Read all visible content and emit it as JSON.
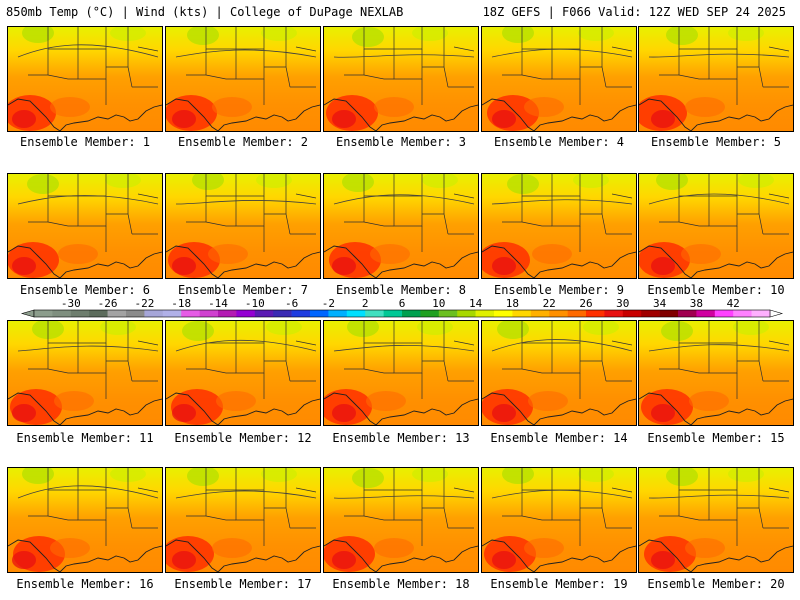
{
  "header": {
    "left": "850mb Temp (°C) | Wind (kts) | College of DuPage NEXLAB",
    "right": "18Z GEFS | F066 Valid: 12Z WED SEP 24 2025"
  },
  "member_label": "Ensemble Member:",
  "members": [
    1,
    2,
    3,
    4,
    5,
    6,
    7,
    8,
    9,
    10,
    11,
    12,
    13,
    14,
    15,
    16,
    17,
    18,
    19,
    20
  ],
  "colorbar": {
    "labels": [
      "-30",
      "-26",
      "-22",
      "-18",
      "-14",
      "-10",
      "-6",
      "-2",
      "2",
      "6",
      "10",
      "14",
      "18",
      "22",
      "26",
      "30",
      "34",
      "38",
      "42"
    ],
    "colors": [
      "#8c9d8c",
      "#7f8f7f",
      "#6e7e6e",
      "#5c6c5c",
      "#a3a3a3",
      "#8b8b8b",
      "#a6a6d9",
      "#b0b0e8",
      "#e65ce6",
      "#d040d0",
      "#b31ab3",
      "#9400d3",
      "#5a1ab3",
      "#3a2ab3",
      "#1f3ce0",
      "#0066ff",
      "#00b0ff",
      "#00e0ff",
      "#40e0c0",
      "#00c896",
      "#00a050",
      "#20a020",
      "#6cc020",
      "#a8d800",
      "#e0f000",
      "#ffff00",
      "#ffd700",
      "#ffb000",
      "#ff9000",
      "#ff6a00",
      "#ff3000",
      "#e81010",
      "#c80000",
      "#a00000",
      "#800000",
      "#a00050",
      "#d000a0",
      "#ff40ff",
      "#ff80ff",
      "#ffb0ff"
    ]
  }
}
